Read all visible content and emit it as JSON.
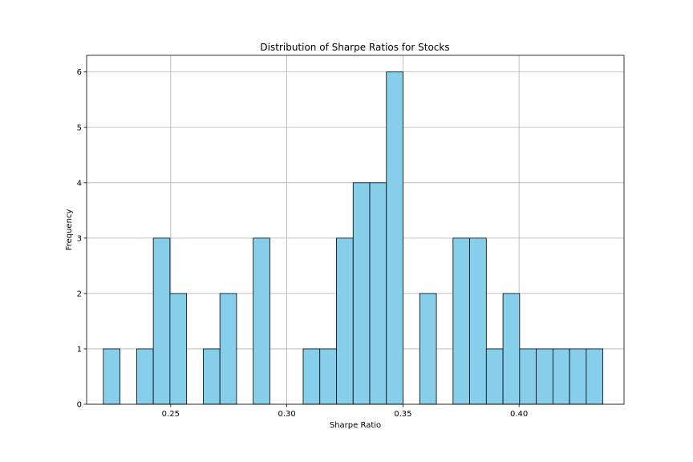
{
  "chart_data": {
    "type": "bar",
    "title": "Distribution of Sharpe Ratios for Stocks",
    "xlabel": "Sharpe Ratio",
    "ylabel": "Frequency",
    "xlim": [
      0.2138,
      0.4452
    ],
    "ylim": [
      0,
      6.3
    ],
    "xticks": [
      "0.25",
      "0.30",
      "0.35",
      "0.40"
    ],
    "yticks": [
      "0",
      "1",
      "2",
      "3",
      "4",
      "5",
      "6"
    ],
    "bin_start": 0.221,
    "bin_width": 0.00717,
    "counts": [
      1,
      0,
      1,
      3,
      2,
      0,
      1,
      2,
      0,
      3,
      0,
      0,
      1,
      1,
      3,
      4,
      4,
      6,
      0,
      2,
      0,
      3,
      3,
      1,
      2,
      1,
      1,
      1,
      1,
      1
    ],
    "grid": true,
    "bar_color": "#87ceeb",
    "edge_color": "#000000"
  }
}
